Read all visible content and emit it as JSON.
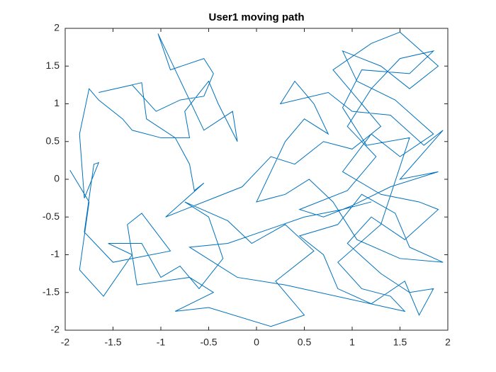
{
  "chart_data": {
    "type": "line",
    "title": "User1 moving path",
    "color": "#0072bd",
    "x": [
      -1.95,
      -1.75,
      -1.85,
      -1.6,
      -1.3,
      -1.55,
      -1.2,
      -1.0,
      -0.8,
      -0.6,
      -0.35,
      -0.5,
      -0.75,
      -0.3,
      -0.05,
      0.3,
      0.6,
      0.2,
      0.5,
      0.15,
      -0.5,
      -0.85,
      -0.45,
      -0.7,
      -1.25,
      -1.35,
      -1.2,
      -0.9,
      -1.5,
      -1.8,
      -1.7,
      -1.65,
      -1.8,
      -1.85,
      -1.75,
      -1.65,
      -1.4,
      -1.3,
      -1.0,
      -0.7,
      -0.75,
      -0.5,
      -0.4,
      -0.3,
      -0.2,
      -0.25,
      -0.55,
      -1.03,
      -0.9,
      -0.55,
      -0.45,
      -0.55,
      -0.8,
      -1.05,
      -1.3,
      -1.65,
      -1.2,
      -1.15,
      -0.85,
      -0.7,
      -0.65,
      -0.55,
      -0.95,
      -0.45,
      -0.15,
      0.15,
      0.4,
      0.7,
      1.0,
      1.3,
      1.1,
      0.8,
      1.2,
      1.5,
      1.9,
      1.6,
      1.3,
      0.9,
      1.05,
      1.45,
      1.85,
      1.5,
      1.2,
      0.9,
      1.3,
      1.7,
      1.9,
      1.55,
      1.2,
      0.95,
      1.3,
      1.6,
      1.85,
      1.7,
      1.55,
      1.2,
      0.85,
      0.7,
      0.45,
      0.85,
      1.1,
      1.45,
      1.6,
      1.95,
      1.5,
      1.05,
      0.8,
      0.55,
      0.3,
      0.0,
      0.3,
      0.5,
      0.75,
      0.6,
      0.4,
      0.25,
      0.75,
      1.0,
      1.4,
      1.75,
      1.95,
      1.5,
      1.9,
      1.4,
      1.0,
      0.7,
      0.45,
      0.95,
      1.25,
      0.95,
      1.2,
      1.5,
      1.85,
      1.6,
      1.1,
      0.9,
      1.15,
      1.6,
      1.3,
      0.85,
      1.1,
      1.4,
      1.55,
      0.3,
      -0.2,
      -0.7,
      -0.3,
      0.5,
      0.9,
      1.2
    ],
    "values": [
      0.12,
      -0.3,
      -1.2,
      -1.55,
      -1.0,
      -0.85,
      -0.85,
      -1.3,
      -1.15,
      -1.45,
      -1.05,
      -0.5,
      -0.3,
      -0.55,
      -0.85,
      -0.6,
      -0.95,
      -1.35,
      -1.8,
      -1.95,
      -1.7,
      -1.75,
      -1.5,
      -1.3,
      -1.4,
      -0.6,
      -0.45,
      -0.95,
      -1.1,
      -0.7,
      0.2,
      0.22,
      -0.25,
      0.6,
      1.2,
      1.05,
      0.8,
      0.65,
      0.55,
      0.55,
      0.9,
      1.3,
      1.0,
      0.75,
      0.5,
      0.9,
      0.65,
      1.93,
      1.45,
      1.6,
      1.4,
      1.1,
      1.05,
      0.9,
      1.25,
      1.15,
      1.28,
      0.8,
      0.55,
      0.2,
      -0.15,
      -0.05,
      -0.5,
      -0.25,
      -0.1,
      0.3,
      0.2,
      0.5,
      0.4,
      0.7,
      1.0,
      1.45,
      1.8,
      1.95,
      1.5,
      1.2,
      1.5,
      1.7,
      1.3,
      1.05,
      0.6,
      0.3,
      0.6,
      0.1,
      -0.2,
      -0.3,
      -0.4,
      -0.8,
      -0.5,
      -0.85,
      -1.25,
      -1.5,
      -1.45,
      -1.8,
      -1.35,
      -1.65,
      -1.45,
      -1.0,
      -0.75,
      -0.6,
      -0.2,
      -0.45,
      -0.9,
      -1.1,
      -1.05,
      -0.8,
      -0.3,
      0.0,
      -0.2,
      -0.3,
      0.5,
      0.8,
      0.6,
      1.0,
      1.3,
      1.0,
      1.15,
      0.9,
      0.85,
      0.45,
      0.65,
      0.0,
      0.1,
      -0.1,
      -0.35,
      -0.5,
      -0.4,
      -0.15,
      0.3,
      0.7,
      1.2,
      1.6,
      1.7,
      1.4,
      1.45,
      0.95,
      0.45,
      0.55,
      -0.6,
      -1.1,
      -1.45,
      -1.55,
      -1.75,
      -1.4,
      -1.3,
      -0.9,
      -0.85,
      -0.5,
      -0.4,
      -0.3
    ],
    "xlim": [
      -2,
      2
    ],
    "ylim": [
      -2,
      2
    ],
    "xticks": [
      -2,
      -1.5,
      -1,
      -0.5,
      0,
      0.5,
      1,
      1.5,
      2
    ],
    "yticks": [
      -2,
      -1.5,
      -1,
      -0.5,
      0,
      0.5,
      1,
      1.5,
      2
    ]
  }
}
